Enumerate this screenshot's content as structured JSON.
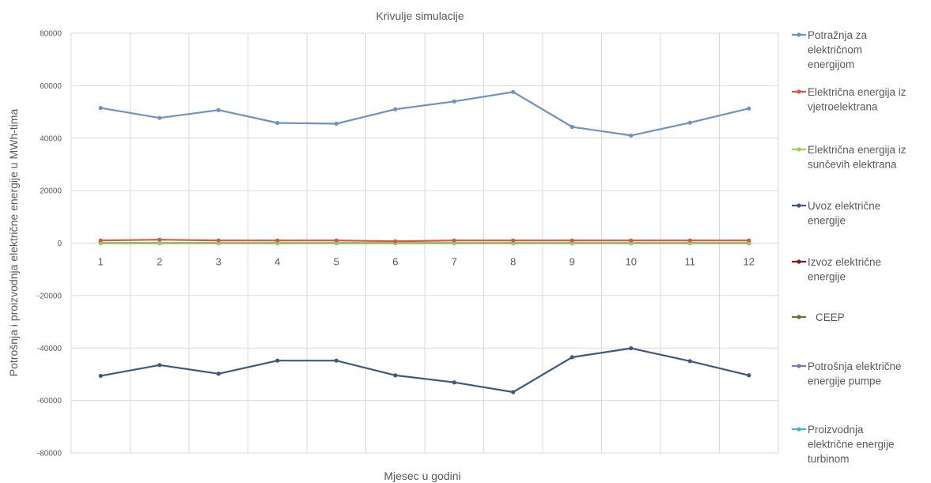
{
  "chart_data": {
    "type": "line",
    "title": "Krivulje simulacije",
    "xlabel": "Mjesec u godini",
    "ylabel": "Potrošnja  i proizvodnja električne energije u MWh-tima",
    "ylim": [
      -80000,
      80000
    ],
    "yticks": [
      "80000",
      "60000",
      "40000",
      "20000",
      "0",
      "-20000",
      "-40000",
      "-60000",
      "-80000"
    ],
    "categories": [
      "1",
      "2",
      "3",
      "4",
      "5",
      "6",
      "7",
      "8",
      "9",
      "10",
      "11",
      "12"
    ],
    "grid": true,
    "legend_position": "right",
    "series": [
      {
        "name_lines": [
          "Potražnja za",
          "električnom",
          "energijom"
        ],
        "color": "#6c93c1",
        "values": [
          51500,
          47700,
          50700,
          45800,
          45500,
          51000,
          54000,
          57600,
          44300,
          41000,
          45900,
          51300
        ]
      },
      {
        "name_lines": [
          "Električna energija iz",
          "vjetroelektrana"
        ],
        "color": "#d9534f",
        "values": [
          1000,
          1300,
          1000,
          1000,
          1000,
          700,
          1000,
          1000,
          1000,
          1000,
          1000,
          1000
        ]
      },
      {
        "name_lines": [
          "Električna energija iz",
          "sunčevih elektrana"
        ],
        "color": "#9bd15a",
        "values": [
          0,
          0,
          0,
          0,
          0,
          0,
          0,
          0,
          0,
          0,
          0,
          0
        ]
      },
      {
        "name_lines": [
          "Uvoz električne",
          "energije"
        ],
        "color": "#3b5a7e",
        "values": [
          -50600,
          -46500,
          -49800,
          -44800,
          -44800,
          -50400,
          -53100,
          -56800,
          -43500,
          -40100,
          -45000,
          -50400
        ]
      },
      {
        "name_lines": [
          "Izvoz električne",
          "energije"
        ],
        "color": "#7a1f1f",
        "values": [
          0,
          0,
          0,
          0,
          0,
          0,
          0,
          0,
          0,
          0,
          0,
          0
        ]
      },
      {
        "name_lines": [
          "CEEP"
        ],
        "color": "#5f7a2a",
        "values": [
          0,
          0,
          0,
          0,
          0,
          0,
          0,
          0,
          0,
          0,
          0,
          0
        ]
      },
      {
        "name_lines": [
          "Potrošnja električne",
          "energije pumpe"
        ],
        "color": "#8c6bb1",
        "values": [
          0,
          0,
          0,
          0,
          0,
          0,
          0,
          0,
          0,
          0,
          0,
          0
        ]
      },
      {
        "name_lines": [
          "Proizvodnja",
          "električne energije",
          "turbinom"
        ],
        "color": "#3fb6cc",
        "values": [
          0,
          0,
          0,
          0,
          0,
          0,
          0,
          0,
          0,
          0,
          0,
          0
        ]
      }
    ]
  }
}
